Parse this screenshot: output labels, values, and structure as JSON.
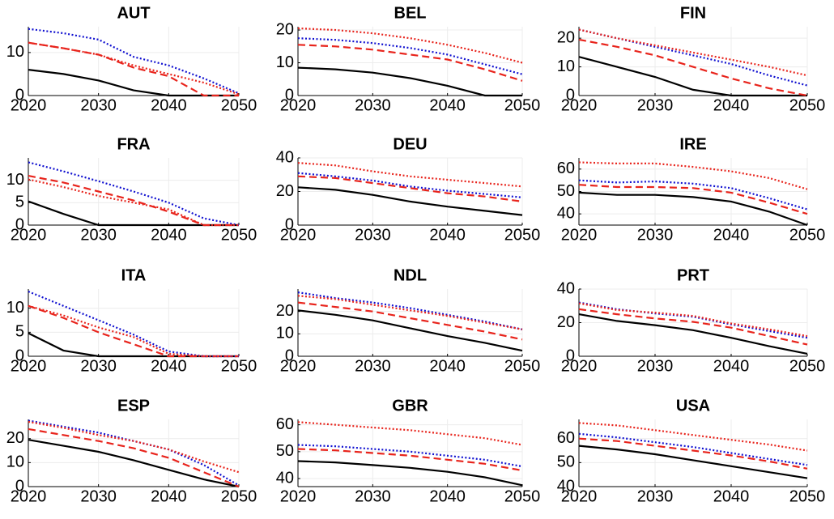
{
  "chart_data": [
    {
      "type": "line",
      "title": "AUT",
      "x": [
        2020,
        2025,
        2030,
        2035,
        2040,
        2045,
        2050
      ],
      "xlim": [
        2020,
        2050
      ],
      "xticks": [
        2020,
        2030,
        2040,
        2050
      ],
      "ylim": [
        0,
        16
      ],
      "yticks": [
        0,
        10
      ],
      "grid": true,
      "series": [
        {
          "color": "#000000",
          "dash": "solid",
          "values": [
            6,
            5,
            3.5,
            1.2,
            0,
            0,
            0
          ]
        },
        {
          "color": "#e8241c",
          "dash": "dashed",
          "values": [
            12.3,
            11,
            9.5,
            6.5,
            4.5,
            0,
            0
          ]
        },
        {
          "color": "#1010d0",
          "dash": "dotted",
          "values": [
            15.5,
            14.5,
            13,
            9,
            7,
            4,
            0.5
          ]
        },
        {
          "color": "#e8241c",
          "dash": "dotted",
          "values": [
            12.3,
            11,
            9.5,
            7,
            5,
            3,
            0.3
          ]
        }
      ]
    },
    {
      "type": "line",
      "title": "BEL",
      "x": [
        2020,
        2025,
        2030,
        2035,
        2040,
        2045,
        2050
      ],
      "xlim": [
        2020,
        2050
      ],
      "xticks": [
        2020,
        2030,
        2040,
        2050
      ],
      "ylim": [
        0,
        21
      ],
      "yticks": [
        0,
        10,
        20
      ],
      "grid": true,
      "series": [
        {
          "color": "#000000",
          "dash": "solid",
          "values": [
            8.5,
            8,
            7,
            5.3,
            3,
            0,
            0
          ]
        },
        {
          "color": "#e8241c",
          "dash": "dashed",
          "values": [
            15.5,
            15,
            14,
            12.5,
            11,
            8,
            4.5
          ]
        },
        {
          "color": "#1010d0",
          "dash": "dotted",
          "values": [
            17.5,
            17,
            16,
            14.5,
            12.5,
            9.5,
            6.5
          ]
        },
        {
          "color": "#e8241c",
          "dash": "dotted",
          "values": [
            20.5,
            20,
            19,
            17.5,
            15.5,
            13,
            10
          ]
        }
      ]
    },
    {
      "type": "line",
      "title": "FIN",
      "x": [
        2020,
        2025,
        2030,
        2035,
        2040,
        2045,
        2050
      ],
      "xlim": [
        2020,
        2050
      ],
      "xticks": [
        2020,
        2030,
        2040,
        2050
      ],
      "ylim": [
        0,
        24
      ],
      "yticks": [
        0,
        10,
        20
      ],
      "grid": true,
      "series": [
        {
          "color": "#000000",
          "dash": "solid",
          "values": [
            13.5,
            10,
            6.5,
            2,
            0,
            0,
            0
          ]
        },
        {
          "color": "#e8241c",
          "dash": "dashed",
          "values": [
            19.5,
            17,
            14,
            10,
            6,
            2.5,
            0
          ]
        },
        {
          "color": "#1010d0",
          "dash": "dotted",
          "values": [
            23,
            20,
            17,
            14,
            11,
            7,
            3.5
          ]
        },
        {
          "color": "#e8241c",
          "dash": "dotted",
          "values": [
            23,
            20,
            17.5,
            15,
            12.5,
            10,
            7
          ]
        }
      ]
    },
    {
      "type": "line",
      "title": "FRA",
      "x": [
        2020,
        2025,
        2030,
        2035,
        2040,
        2045,
        2050
      ],
      "xlim": [
        2020,
        2050
      ],
      "xticks": [
        2020,
        2030,
        2040,
        2050
      ],
      "ylim": [
        0,
        15
      ],
      "yticks": [
        0,
        5,
        10
      ],
      "grid": true,
      "series": [
        {
          "color": "#000000",
          "dash": "solid",
          "values": [
            5.3,
            2.5,
            0,
            0,
            0,
            0,
            0
          ]
        },
        {
          "color": "#e8241c",
          "dash": "dashed",
          "values": [
            11,
            9.5,
            7.5,
            5.5,
            3,
            0,
            0
          ]
        },
        {
          "color": "#1010d0",
          "dash": "dotted",
          "values": [
            14,
            12,
            9.8,
            7.5,
            5,
            1.5,
            0
          ]
        },
        {
          "color": "#e8241c",
          "dash": "dotted",
          "values": [
            10.2,
            8.5,
            6.5,
            5,
            3.5,
            0,
            0
          ]
        }
      ]
    },
    {
      "type": "line",
      "title": "DEU",
      "x": [
        2020,
        2025,
        2030,
        2035,
        2040,
        2045,
        2050
      ],
      "xlim": [
        2020,
        2050
      ],
      "xticks": [
        2020,
        2030,
        2040,
        2050
      ],
      "ylim": [
        0,
        40
      ],
      "yticks": [
        0,
        20,
        40
      ],
      "grid": true,
      "series": [
        {
          "color": "#000000",
          "dash": "solid",
          "values": [
            22.5,
            21,
            18,
            14,
            11,
            8.5,
            6
          ]
        },
        {
          "color": "#e8241c",
          "dash": "dashed",
          "values": [
            29,
            28,
            25,
            22,
            19,
            17,
            14
          ]
        },
        {
          "color": "#1010d0",
          "dash": "dotted",
          "values": [
            31,
            29,
            26.5,
            23,
            20.5,
            18.5,
            16.5
          ]
        },
        {
          "color": "#e8241c",
          "dash": "dotted",
          "values": [
            37,
            35.5,
            32,
            29,
            27,
            25,
            23
          ]
        }
      ]
    },
    {
      "type": "line",
      "title": "IRE",
      "x": [
        2020,
        2025,
        2030,
        2035,
        2040,
        2045,
        2050
      ],
      "xlim": [
        2020,
        2050
      ],
      "xticks": [
        2020,
        2030,
        2040,
        2050
      ],
      "ylim": [
        35,
        65
      ],
      "yticks": [
        40,
        50,
        60
      ],
      "grid": true,
      "series": [
        {
          "color": "#000000",
          "dash": "solid",
          "values": [
            49.5,
            48.5,
            48.5,
            47.5,
            45.5,
            41,
            35
          ]
        },
        {
          "color": "#e8241c",
          "dash": "dashed",
          "values": [
            53,
            52,
            52,
            51.5,
            49.5,
            45,
            40
          ]
        },
        {
          "color": "#1010d0",
          "dash": "dotted",
          "values": [
            55,
            54,
            54.5,
            53.5,
            51.5,
            47,
            42
          ]
        },
        {
          "color": "#e8241c",
          "dash": "dotted",
          "values": [
            63,
            62.5,
            62.5,
            61,
            59,
            56,
            51
          ]
        }
      ]
    },
    {
      "type": "line",
      "title": "ITA",
      "x": [
        2020,
        2025,
        2030,
        2035,
        2040,
        2045,
        2050
      ],
      "xlim": [
        2020,
        2050
      ],
      "xticks": [
        2020,
        2030,
        2040,
        2050
      ],
      "ylim": [
        0,
        14
      ],
      "yticks": [
        0,
        5,
        10
      ],
      "grid": true,
      "series": [
        {
          "color": "#000000",
          "dash": "solid",
          "values": [
            4.8,
            1.2,
            0,
            0,
            0,
            0,
            0
          ]
        },
        {
          "color": "#e8241c",
          "dash": "dashed",
          "values": [
            10.5,
            8,
            5,
            2.5,
            0,
            0,
            0
          ]
        },
        {
          "color": "#1010d0",
          "dash": "dotted",
          "values": [
            13.5,
            10.5,
            7.5,
            4.5,
            1,
            0,
            0
          ]
        },
        {
          "color": "#e8241c",
          "dash": "dotted",
          "values": [
            10.5,
            8.5,
            6,
            4,
            0.5,
            0,
            0
          ]
        }
      ]
    },
    {
      "type": "line",
      "title": "NDL",
      "x": [
        2020,
        2025,
        2030,
        2035,
        2040,
        2045,
        2050
      ],
      "xlim": [
        2020,
        2050
      ],
      "xticks": [
        2020,
        2030,
        2040,
        2050
      ],
      "ylim": [
        0,
        30
      ],
      "yticks": [
        0,
        10,
        20
      ],
      "grid": true,
      "series": [
        {
          "color": "#000000",
          "dash": "solid",
          "values": [
            20.5,
            18.5,
            16,
            12.5,
            9,
            6,
            2.5
          ]
        },
        {
          "color": "#e8241c",
          "dash": "dashed",
          "values": [
            24,
            22,
            20,
            17,
            14,
            11,
            7.5
          ]
        },
        {
          "color": "#1010d0",
          "dash": "dotted",
          "values": [
            28.5,
            26,
            24,
            21.5,
            18.5,
            15.5,
            12
          ]
        },
        {
          "color": "#e8241c",
          "dash": "dotted",
          "values": [
            27,
            25.5,
            23,
            20.5,
            18,
            15,
            12
          ]
        }
      ]
    },
    {
      "type": "line",
      "title": "PRT",
      "x": [
        2020,
        2025,
        2030,
        2035,
        2040,
        2045,
        2050
      ],
      "xlim": [
        2020,
        2050
      ],
      "xticks": [
        2020,
        2030,
        2040,
        2050
      ],
      "ylim": [
        0,
        40
      ],
      "yticks": [
        0,
        20,
        40
      ],
      "grid": true,
      "series": [
        {
          "color": "#000000",
          "dash": "solid",
          "values": [
            25,
            21,
            18.5,
            15.5,
            11,
            6,
            1.5
          ]
        },
        {
          "color": "#e8241c",
          "dash": "dashed",
          "values": [
            28,
            25,
            22.5,
            20.5,
            17,
            12,
            7
          ]
        },
        {
          "color": "#1010d0",
          "dash": "dotted",
          "values": [
            32,
            28,
            25.5,
            23.5,
            19,
            15,
            11
          ]
        },
        {
          "color": "#e8241c",
          "dash": "dotted",
          "values": [
            31.5,
            27.5,
            26,
            24,
            19.5,
            16,
            12
          ]
        }
      ]
    },
    {
      "type": "line",
      "title": "ESP",
      "x": [
        2020,
        2025,
        2030,
        2035,
        2040,
        2045,
        2050
      ],
      "xlim": [
        2020,
        2050
      ],
      "xticks": [
        2020,
        2030,
        2040,
        2050
      ],
      "ylim": [
        0,
        28
      ],
      "yticks": [
        0,
        10,
        20
      ],
      "grid": true,
      "series": [
        {
          "color": "#000000",
          "dash": "solid",
          "values": [
            19.5,
            17,
            14.5,
            11,
            7,
            3,
            0
          ]
        },
        {
          "color": "#e8241c",
          "dash": "dashed",
          "values": [
            24,
            21.5,
            19,
            16,
            12,
            6,
            0
          ]
        },
        {
          "color": "#1010d0",
          "dash": "dotted",
          "values": [
            27.5,
            25,
            22.5,
            19,
            15.5,
            9,
            0.5
          ]
        },
        {
          "color": "#e8241c",
          "dash": "dotted",
          "values": [
            27,
            24.5,
            21.5,
            19,
            15.5,
            10.5,
            6
          ]
        }
      ]
    },
    {
      "type": "line",
      "title": "GBR",
      "x": [
        2020,
        2025,
        2030,
        2035,
        2040,
        2045,
        2050
      ],
      "xlim": [
        2020,
        2050
      ],
      "xticks": [
        2020,
        2030,
        2040,
        2050
      ],
      "ylim": [
        37,
        62
      ],
      "yticks": [
        40,
        50,
        60
      ],
      "grid": true,
      "series": [
        {
          "color": "#000000",
          "dash": "solid",
          "values": [
            46.5,
            46,
            45,
            44,
            42.5,
            40.5,
            37.5
          ]
        },
        {
          "color": "#e8241c",
          "dash": "dashed",
          "values": [
            51,
            50.5,
            49.5,
            48.5,
            47,
            45.5,
            43
          ]
        },
        {
          "color": "#1010d0",
          "dash": "dotted",
          "values": [
            52.5,
            52,
            51,
            50,
            48.5,
            47,
            44.5
          ]
        },
        {
          "color": "#e8241c",
          "dash": "dotted",
          "values": [
            61,
            60,
            59,
            58,
            56.5,
            55,
            52.5
          ]
        }
      ]
    },
    {
      "type": "line",
      "title": "USA",
      "x": [
        2020,
        2025,
        2030,
        2035,
        2040,
        2045,
        2050
      ],
      "xlim": [
        2020,
        2050
      ],
      "xticks": [
        2020,
        2030,
        2040,
        2050
      ],
      "ylim": [
        40,
        68
      ],
      "yticks": [
        40,
        50,
        60
      ],
      "grid": true,
      "series": [
        {
          "color": "#000000",
          "dash": "solid",
          "values": [
            57,
            55.5,
            53.5,
            51,
            48.5,
            46,
            43.5
          ]
        },
        {
          "color": "#e8241c",
          "dash": "dashed",
          "values": [
            60,
            59,
            57,
            55,
            53,
            50.5,
            47.5
          ]
        },
        {
          "color": "#1010d0",
          "dash": "dotted",
          "values": [
            62,
            60.5,
            58.5,
            56.5,
            54,
            51.5,
            49
          ]
        },
        {
          "color": "#e8241c",
          "dash": "dotted",
          "values": [
            66.5,
            65.5,
            63.5,
            61.5,
            59.5,
            57.5,
            55
          ]
        }
      ]
    }
  ]
}
